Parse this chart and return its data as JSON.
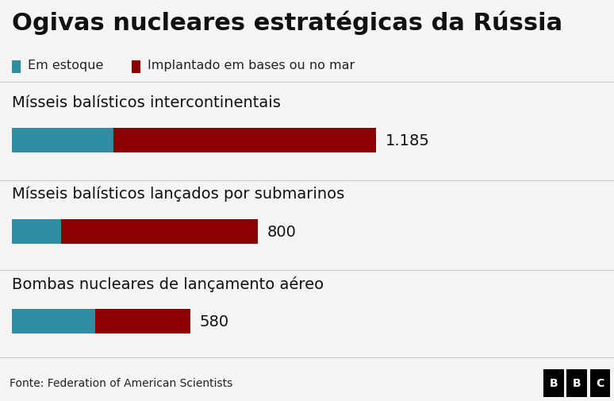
{
  "title": "Ogivas nucleares estratégicas da Rússia",
  "legend_stock": "Em estoque",
  "legend_deployed": "Implantado em bases ou no mar",
  "color_stock": "#2E8FA3",
  "color_deployed": "#8B0000",
  "background_color": "#f5f5f5",
  "categories": [
    "Mísseis balísticos intercontinentais",
    "Mísseis balísticos lançados por submarinos",
    "Bombas nucleares de lançamento aéreo"
  ],
  "totals": [
    "1.185",
    "800",
    "580"
  ],
  "stock_values": [
    330,
    160,
    270
  ],
  "deployed_values": [
    855,
    640,
    310
  ],
  "max_value": 1400,
  "footer_text": "Fonte: Federation of American Scientists",
  "footer_bg": "#e0e0e0",
  "title_fontsize": 22,
  "label_fontsize": 14,
  "total_fontsize": 14
}
